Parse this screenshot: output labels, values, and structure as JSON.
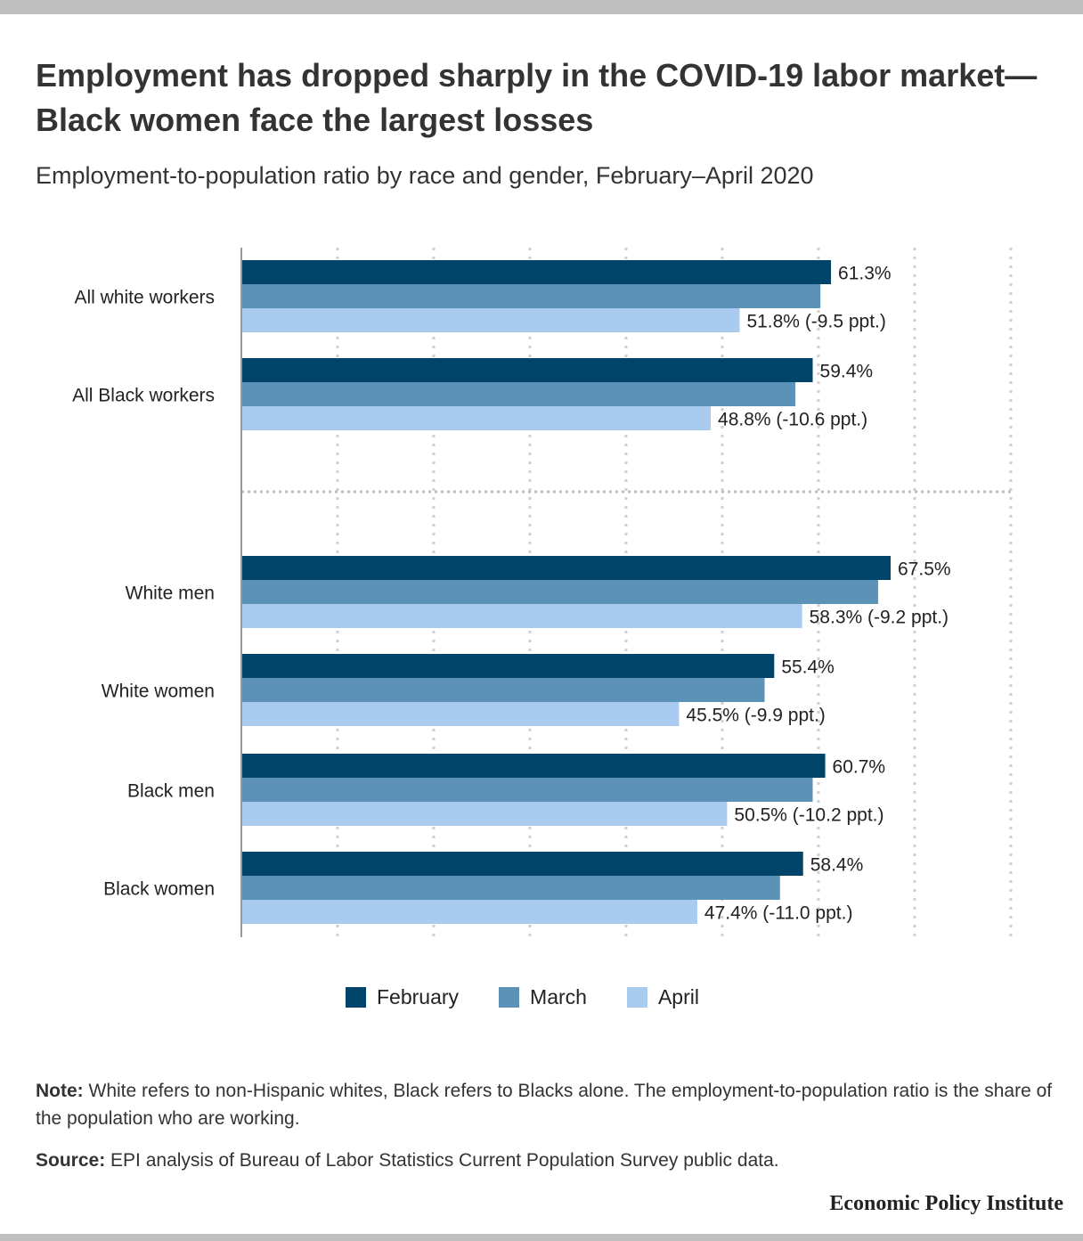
{
  "chart_data": {
    "type": "bar",
    "orientation": "horizontal",
    "title": "Employment has dropped sharply in the COVID-19 labor market—Black women face the largest losses",
    "subtitle": "Employment-to-population ratio by race and gender, February–April 2020",
    "categories": [
      "All white workers",
      "All Black workers",
      "White men",
      "White women",
      "Black men",
      "Black women"
    ],
    "group_separator_after": 1,
    "series": [
      {
        "name": "February",
        "color": "#00446a",
        "values": [
          61.3,
          59.4,
          67.5,
          55.4,
          60.7,
          58.4
        ]
      },
      {
        "name": "March",
        "color": "#5d92b8",
        "values": [
          60.2,
          57.6,
          66.2,
          54.4,
          59.4,
          56.0
        ]
      },
      {
        "name": "April",
        "color": "#a8cbef",
        "values": [
          51.8,
          48.8,
          58.3,
          45.5,
          50.5,
          47.4
        ]
      }
    ],
    "data_labels": {
      "February": [
        "61.3%",
        "59.4%",
        "67.5%",
        "55.4%",
        "60.7%",
        "58.4%"
      ],
      "April": [
        "51.8% (-9.5 ppt.)",
        "48.8% (-10.6 ppt.)",
        "58.3% (-9.2 ppt.)",
        "45.5% (-9.9 ppt.)",
        "50.5% (-10.2 ppt.)",
        "47.4% (-11.0 ppt.)"
      ]
    },
    "xlim": [
      0,
      80
    ],
    "grid": true,
    "legend": "bottom-center"
  },
  "legend": {
    "february": "February",
    "march": "March",
    "april": "April"
  },
  "footer": {
    "note_label": "Note:",
    "note_text": " White refers to non-Hispanic whites, Black refers to Blacks alone. The employment-to-population ratio is the share of the population who are working.",
    "source_label": "Source:",
    "source_text": " EPI analysis of Bureau of Labor Statistics Current Population Survey public data.",
    "publisher": "Economic Policy Institute"
  }
}
